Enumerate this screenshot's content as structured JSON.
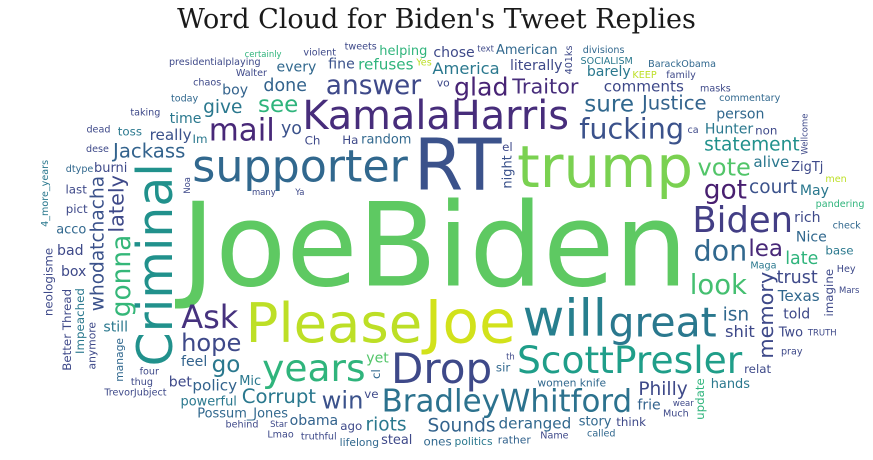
{
  "chart_data": {
    "type": "wordcloud",
    "title": "Word Cloud for Biden's Tweet Replies",
    "background": "#ffffff",
    "words": [
      {
        "text": "JoeBiden",
        "weight": 100,
        "color": "#5ec962",
        "rotate": false
      },
      {
        "text": "trump",
        "weight": 48,
        "color": "#7ad151",
        "rotate": false
      },
      {
        "text": "Please",
        "weight": 45,
        "color": "#bddf26",
        "rotate": false
      },
      {
        "text": "RT",
        "weight": 60,
        "color": "#3b528b",
        "rotate": false
      },
      {
        "text": "Joe",
        "weight": 50,
        "color": "#d2e21b",
        "rotate": false
      },
      {
        "text": "will",
        "weight": 42,
        "color": "#277f8e",
        "rotate": false
      },
      {
        "text": "supporter",
        "weight": 36,
        "color": "#31688e",
        "rotate": false
      },
      {
        "text": "KamalaHarris",
        "weight": 32,
        "color": "#472d7b",
        "rotate": false
      },
      {
        "text": "Criminal",
        "weight": 40,
        "color": "#21918c",
        "rotate": true
      },
      {
        "text": "Drop",
        "weight": 34,
        "color": "#3e4989",
        "rotate": false
      },
      {
        "text": "great",
        "weight": 33,
        "color": "#2a788e",
        "rotate": false
      },
      {
        "text": "ScottPresler",
        "weight": 30,
        "color": "#1f9e89",
        "rotate": false
      },
      {
        "text": "Biden",
        "weight": 28,
        "color": "#433e85",
        "rotate": false
      },
      {
        "text": "years",
        "weight": 30,
        "color": "#2fb47c",
        "rotate": false
      },
      {
        "text": "BradleyWhitford",
        "weight": 24,
        "color": "#2c728e",
        "rotate": false
      },
      {
        "text": "Ask",
        "weight": 25,
        "color": "#46327e",
        "rotate": false
      },
      {
        "text": "mail",
        "weight": 24,
        "color": "#482878",
        "rotate": false
      },
      {
        "text": "fucking",
        "weight": 22,
        "color": "#3b528b",
        "rotate": false
      },
      {
        "text": "don",
        "weight": 22,
        "color": "#31688e",
        "rotate": false
      },
      {
        "text": "look",
        "weight": 21,
        "color": "#44bf70",
        "rotate": false
      },
      {
        "text": "answer",
        "weight": 20,
        "color": "#3e4989",
        "rotate": false
      },
      {
        "text": "got",
        "weight": 20,
        "color": "#481f70",
        "rotate": false
      },
      {
        "text": "glad",
        "weight": 19,
        "color": "#482475",
        "rotate": false
      },
      {
        "text": "gonna",
        "weight": 20,
        "color": "#35b779",
        "rotate": true
      },
      {
        "text": "hope",
        "weight": 18,
        "color": "#3e4989",
        "rotate": false
      },
      {
        "text": "vote",
        "weight": 18,
        "color": "#52c569",
        "rotate": false
      },
      {
        "text": "win",
        "weight": 18,
        "color": "#3b528b",
        "rotate": false
      },
      {
        "text": "sure",
        "weight": 17,
        "color": "#31688e",
        "rotate": false
      },
      {
        "text": "go",
        "weight": 17,
        "color": "#2a788e",
        "rotate": false
      },
      {
        "text": "lea",
        "weight": 17,
        "color": "#482878",
        "rotate": false
      },
      {
        "text": "see",
        "weight": 17,
        "color": "#2fb47c",
        "rotate": false
      },
      {
        "text": "memory",
        "weight": 15,
        "color": "#3e4989",
        "rotate": true
      },
      {
        "text": "lately",
        "weight": 15,
        "color": "#3e4989",
        "rotate": true
      },
      {
        "text": "Corrupt",
        "weight": 14,
        "color": "#2a788e",
        "rotate": false
      },
      {
        "text": "Traitor",
        "weight": 15,
        "color": "#472d7b",
        "rotate": false
      },
      {
        "text": "Justice",
        "weight": 14,
        "color": "#33638d",
        "rotate": false
      },
      {
        "text": "Jackass",
        "weight": 14,
        "color": "#33638d",
        "rotate": false
      },
      {
        "text": "statement",
        "weight": 13,
        "color": "#21918c",
        "rotate": false
      },
      {
        "text": "Sounds",
        "weight": 13,
        "color": "#33638d",
        "rotate": false
      },
      {
        "text": "court",
        "weight": 13,
        "color": "#3b528b",
        "rotate": false
      },
      {
        "text": "give",
        "weight": 13,
        "color": "#2a788e",
        "rotate": false
      },
      {
        "text": "Philly",
        "weight": 13,
        "color": "#3e4989",
        "rotate": false
      },
      {
        "text": "whodatchacha",
        "weight": 13,
        "color": "#3b528b",
        "rotate": true
      },
      {
        "text": "isn",
        "weight": 13,
        "color": "#31688e",
        "rotate": false
      },
      {
        "text": "riots",
        "weight": 13,
        "color": "#2a788e",
        "rotate": false
      },
      {
        "text": "trust",
        "weight": 12,
        "color": "#3e4989",
        "rotate": false
      },
      {
        "text": "done",
        "weight": 12,
        "color": "#33638d",
        "rotate": false
      },
      {
        "text": "late",
        "weight": 12,
        "color": "#2fb47c",
        "rotate": false
      },
      {
        "text": "yo",
        "weight": 12,
        "color": "#3b528b",
        "rotate": false
      },
      {
        "text": "shit",
        "weight": 11,
        "color": "#3e4989",
        "rotate": false
      },
      {
        "text": "America",
        "weight": 11,
        "color": "#2a788e",
        "rotate": false
      },
      {
        "text": "deranged",
        "weight": 10,
        "color": "#31688e",
        "rotate": false
      },
      {
        "text": "really",
        "weight": 10,
        "color": "#3b528b",
        "rotate": false
      },
      {
        "text": "comments",
        "weight": 10,
        "color": "#3e4989",
        "rotate": false
      },
      {
        "text": "policy",
        "weight": 10,
        "color": "#33638d",
        "rotate": false
      },
      {
        "text": "alive",
        "weight": 10,
        "color": "#2a788e",
        "rotate": false
      },
      {
        "text": "refuses",
        "weight": 10,
        "color": "#2fb47c",
        "rotate": false
      },
      {
        "text": "Texas",
        "weight": 10,
        "color": "#31688e",
        "rotate": false
      },
      {
        "text": "obama",
        "weight": 9,
        "color": "#33638d",
        "rotate": false
      },
      {
        "text": "Hunter",
        "weight": 9,
        "color": "#2a788e",
        "rotate": false
      },
      {
        "text": "feel",
        "weight": 9,
        "color": "#33638d",
        "rotate": false
      },
      {
        "text": "literally",
        "weight": 9,
        "color": "#3e4989",
        "rotate": false
      },
      {
        "text": "time",
        "weight": 9,
        "color": "#2a788e",
        "rotate": false
      },
      {
        "text": "Nice",
        "weight": 9,
        "color": "#31688e",
        "rotate": false
      },
      {
        "text": "still",
        "weight": 9,
        "color": "#2a788e",
        "rotate": false
      },
      {
        "text": "rich",
        "weight": 9,
        "color": "#3e4989",
        "rotate": false
      },
      {
        "text": "boy",
        "weight": 9,
        "color": "#33638d",
        "rotate": false
      },
      {
        "text": "told",
        "weight": 9,
        "color": "#3e4989",
        "rotate": false
      },
      {
        "text": "every",
        "weight": 9,
        "color": "#31688e",
        "rotate": false
      },
      {
        "text": "frie",
        "weight": 9,
        "color": "#33638d",
        "rotate": false
      },
      {
        "text": "chose",
        "weight": 9,
        "color": "#3e4989",
        "rotate": false
      },
      {
        "text": "barely",
        "weight": 9,
        "color": "#2a788e",
        "rotate": false
      },
      {
        "text": "random",
        "weight": 8,
        "color": "#31688e",
        "rotate": false
      },
      {
        "text": "burni",
        "weight": 8,
        "color": "#3e4989",
        "rotate": false
      },
      {
        "text": "fine",
        "weight": 9,
        "color": "#3b528b",
        "rotate": false
      },
      {
        "text": "person",
        "weight": 9,
        "color": "#31688e",
        "rotate": false
      },
      {
        "text": "bet",
        "weight": 9,
        "color": "#3e4989",
        "rotate": false
      },
      {
        "text": "May",
        "weight": 9,
        "color": "#2a788e",
        "rotate": false
      },
      {
        "text": "night",
        "weight": 8,
        "color": "#3b528b",
        "rotate": true
      },
      {
        "text": "Possum_Jones",
        "weight": 8,
        "color": "#31688e",
        "rotate": false
      },
      {
        "text": "ZigTj",
        "weight": 8,
        "color": "#3e4989",
        "rotate": false
      },
      {
        "text": "acco",
        "weight": 8,
        "color": "#31688e",
        "rotate": false
      },
      {
        "text": "Two",
        "weight": 8,
        "color": "#3e4989",
        "rotate": false
      },
      {
        "text": "Mic",
        "weight": 8,
        "color": "#2a788e",
        "rotate": false
      },
      {
        "text": "box",
        "weight": 9,
        "color": "#3e4989",
        "rotate": false
      },
      {
        "text": "yet",
        "weight": 9,
        "color": "#52c569",
        "rotate": false
      },
      {
        "text": "bad",
        "weight": 9,
        "color": "#3e4989",
        "rotate": false
      },
      {
        "text": "hands",
        "weight": 8,
        "color": "#2a788e",
        "rotate": false
      },
      {
        "text": "story",
        "weight": 8,
        "color": "#31688e",
        "rotate": false
      },
      {
        "text": "helping",
        "weight": 8,
        "color": "#2fb47c",
        "rotate": false
      },
      {
        "text": "steal",
        "weight": 8,
        "color": "#3e4989",
        "rotate": false
      },
      {
        "text": "American",
        "weight": 8,
        "color": "#31688e",
        "rotate": false
      },
      {
        "text": "powerful",
        "weight": 8,
        "color": "#2a788e",
        "rotate": false
      },
      {
        "text": "ago",
        "weight": 7,
        "color": "#3e4989",
        "rotate": false
      },
      {
        "text": "ones",
        "weight": 7,
        "color": "#31688e",
        "rotate": false
      },
      {
        "text": "non",
        "weight": 7,
        "color": "#3e4989",
        "rotate": false
      },
      {
        "text": "Ha",
        "weight": 7,
        "color": "#3e4989",
        "rotate": false
      },
      {
        "text": "base",
        "weight": 7,
        "color": "#2a788e",
        "rotate": false
      },
      {
        "text": "pict",
        "weight": 7,
        "color": "#3e4989",
        "rotate": false
      },
      {
        "text": "sir",
        "weight": 7,
        "color": "#31688e",
        "rotate": false
      },
      {
        "text": "Impeached",
        "weight": 7,
        "color": "#2a788e",
        "rotate": true
      },
      {
        "text": "imagine",
        "weight": 7,
        "color": "#3e4989",
        "rotate": true
      },
      {
        "text": "last",
        "weight": 7,
        "color": "#3e4989",
        "rotate": false
      },
      {
        "text": "four",
        "weight": 5,
        "color": "#3e4989",
        "rotate": false
      },
      {
        "text": "women",
        "weight": 6,
        "color": "#31688e",
        "rotate": false
      },
      {
        "text": "politics",
        "weight": 6,
        "color": "#2a788e",
        "rotate": false
      },
      {
        "text": "think",
        "weight": 7,
        "color": "#3e4989",
        "rotate": false
      },
      {
        "text": "manage",
        "weight": 6,
        "color": "#31688e",
        "rotate": true
      },
      {
        "text": "neologisme",
        "weight": 7,
        "color": "#3e4989",
        "rotate": true
      },
      {
        "text": "rather",
        "weight": 6,
        "color": "#33638d",
        "rotate": false
      },
      {
        "text": "Maga",
        "weight": 5,
        "color": "#2a788e",
        "rotate": false
      },
      {
        "text": "update",
        "weight": 7,
        "color": "#2fb47c",
        "rotate": true
      },
      {
        "text": "anymore",
        "weight": 6,
        "color": "#3e4989",
        "rotate": true
      },
      {
        "text": "Better Thread",
        "weight": 7,
        "color": "#3e4989",
        "rotate": true
      },
      {
        "text": "Ch",
        "weight": 7,
        "color": "#3e4989",
        "rotate": false
      },
      {
        "text": "Im",
        "weight": 7,
        "color": "#2a788e",
        "rotate": false
      },
      {
        "text": "el",
        "weight": 7,
        "color": "#3e4989",
        "rotate": false
      },
      {
        "text": "ve",
        "weight": 7,
        "color": "#3e4989",
        "rotate": false
      },
      {
        "text": "today",
        "weight": 5,
        "color": "#31688e",
        "rotate": false
      },
      {
        "text": "KEEP",
        "weight": 5,
        "color": "#bddf26",
        "rotate": false
      },
      {
        "text": "Walter",
        "weight": 5,
        "color": "#3e4989",
        "rotate": false
      },
      {
        "text": "SOCIALISM",
        "weight": 5,
        "color": "#2a788e",
        "rotate": false
      },
      {
        "text": "knife",
        "weight": 6,
        "color": "#31688e",
        "rotate": false
      },
      {
        "text": "truthful",
        "weight": 5,
        "color": "#3e4989",
        "rotate": false
      },
      {
        "text": "pandering",
        "weight": 5,
        "color": "#2fb47c",
        "rotate": false
      },
      {
        "text": "taking",
        "weight": 5,
        "color": "#3e4989",
        "rotate": false
      },
      {
        "text": "lifelong",
        "weight": 6,
        "color": "#31688e",
        "rotate": false
      },
      {
        "text": "Name",
        "weight": 5,
        "color": "#3e4989",
        "rotate": false
      },
      {
        "text": "violent",
        "weight": 5,
        "color": "#3e4989",
        "rotate": false
      },
      {
        "text": "check",
        "weight": 5,
        "color": "#31688e",
        "rotate": false
      },
      {
        "text": "4_more_years",
        "weight": 5,
        "color": "#2a788e",
        "rotate": true
      },
      {
        "text": "pray",
        "weight": 5,
        "color": "#3e4989",
        "rotate": false
      },
      {
        "text": "dtype",
        "weight": 5,
        "color": "#31688e",
        "rotate": false
      },
      {
        "text": "Much",
        "weight": 5,
        "color": "#3e4989",
        "rotate": false
      },
      {
        "text": "dese",
        "weight": 5,
        "color": "#3e4989",
        "rotate": false
      },
      {
        "text": "Noa",
        "weight": 4,
        "color": "#3e4989",
        "rotate": true
      },
      {
        "text": "401ks",
        "weight": 5,
        "color": "#3e4989",
        "rotate": true
      },
      {
        "text": "chaos",
        "weight": 5,
        "color": "#3e4989",
        "rotate": false
      },
      {
        "text": "called",
        "weight": 5,
        "color": "#31688e",
        "rotate": false
      },
      {
        "text": "tweets",
        "weight": 5,
        "color": "#3e4989",
        "rotate": false
      },
      {
        "text": "family",
        "weight": 5,
        "color": "#3e4989",
        "rotate": false
      },
      {
        "text": "Lmao",
        "weight": 5,
        "color": "#3e4989",
        "rotate": false
      },
      {
        "text": "Hey",
        "weight": 5,
        "color": "#3e4989",
        "rotate": false
      },
      {
        "text": "behind",
        "weight": 5,
        "color": "#3e4989",
        "rotate": false
      },
      {
        "text": "ca",
        "weight": 5,
        "color": "#3e4989",
        "rotate": false
      },
      {
        "text": "cl",
        "weight": 7,
        "color": "#31688e",
        "rotate": true
      },
      {
        "text": "Ya",
        "weight": 4,
        "color": "#3e4989",
        "rotate": false
      },
      {
        "text": "thug",
        "weight": 5,
        "color": "#3e4989",
        "rotate": false
      },
      {
        "text": "masks",
        "weight": 5,
        "color": "#3e4989",
        "rotate": false
      },
      {
        "text": "dead",
        "weight": 5,
        "color": "#3e4989",
        "rotate": false
      },
      {
        "text": "many",
        "weight": 4,
        "color": "#3e4989",
        "rotate": false
      },
      {
        "text": "Wellcome",
        "weight": 4,
        "color": "#3e4989",
        "rotate": true
      },
      {
        "text": "men",
        "weight": 5,
        "color": "#bddf26",
        "rotate": false
      },
      {
        "text": "Yes",
        "weight": 5,
        "color": "#bddf26",
        "rotate": false
      },
      {
        "text": "toss",
        "weight": 7,
        "color": "#2a788e",
        "rotate": false
      },
      {
        "text": "certainly",
        "weight": 4,
        "color": "#2fb47c",
        "rotate": false
      },
      {
        "text": "TRUTH",
        "weight": 4,
        "color": "#3e4989",
        "rotate": false
      },
      {
        "text": "Star",
        "weight": 4,
        "color": "#3e4989",
        "rotate": false
      },
      {
        "text": "divisions",
        "weight": 5,
        "color": "#31688e",
        "rotate": false
      },
      {
        "text": "text",
        "weight": 4,
        "color": "#3e4989",
        "rotate": false
      },
      {
        "text": "relat",
        "weight": 7,
        "color": "#3e4989",
        "rotate": false
      },
      {
        "text": "presidentialplaying",
        "weight": 5,
        "color": "#3e4989",
        "rotate": false
      },
      {
        "text": "commentary",
        "weight": 5,
        "color": "#31688e",
        "rotate": false
      },
      {
        "text": "TrevorJubject",
        "weight": 5,
        "color": "#3e4989",
        "rotate": false
      },
      {
        "text": "BarackObama",
        "weight": 5,
        "color": "#31688e",
        "rotate": false
      },
      {
        "text": "th",
        "weight": 4,
        "color": "#3e4989",
        "rotate": false
      },
      {
        "text": "vo",
        "weight": 6,
        "color": "#3e4989",
        "rotate": false
      },
      {
        "text": "Mars",
        "weight": 4,
        "color": "#3e4989",
        "rotate": false
      },
      {
        "text": "wear",
        "weight": 4,
        "color": "#3e4989",
        "rotate": false
      }
    ]
  }
}
